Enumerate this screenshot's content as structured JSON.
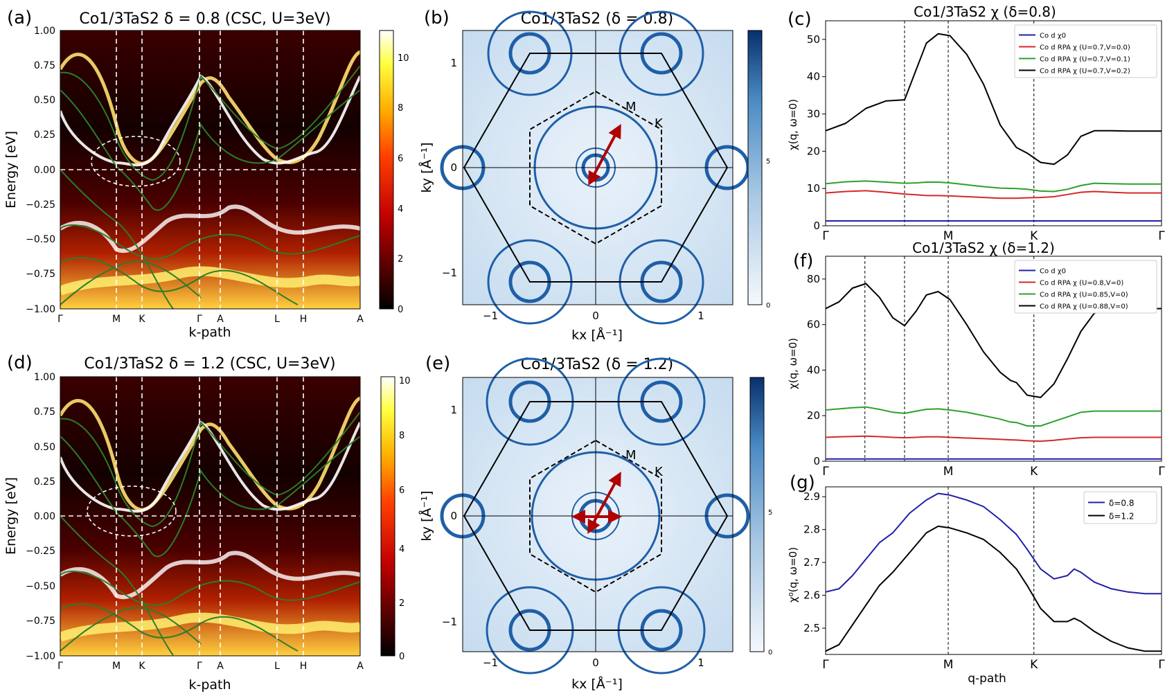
{
  "colors": {
    "green_band": "#2a7d2a",
    "blue_line": "#1f1fa8",
    "red_line": "#d62728",
    "green_line": "#2ca02c",
    "black_line": "#000000",
    "arrow": "#b00000",
    "fermi_blue": "#1f5fa8"
  },
  "panels": {
    "a": {
      "label": "(a)",
      "title": "Co1/3TaS2 δ = 0.8 (CSC, U=3eV)",
      "ylabel": "Energy [eV]",
      "xlabel": "k-path",
      "colorbar_ticks": [
        "0",
        "2",
        "4",
        "6",
        "8",
        "10"
      ]
    },
    "d": {
      "label": "(d)",
      "title": "Co1/3TaS2 δ = 1.2 (CSC, U=3eV)",
      "ylabel": "Energy [eV]",
      "xlabel": "k-path",
      "colorbar_ticks": [
        "0",
        "2",
        "4",
        "6",
        "8",
        "10"
      ]
    },
    "b": {
      "label": "(b)",
      "title": "Co1/3TaS2 (δ = 0.8)",
      "xlabel": "kx [Å⁻¹]",
      "ylabel": "ky [Å⁻¹]",
      "point_m": "M",
      "point_k": "K",
      "colorbar_ticks": [
        "0",
        "5"
      ]
    },
    "e": {
      "label": "(e)",
      "title": "Co1/3TaS2 (δ = 1.2)",
      "xlabel": "kx [Å⁻¹]",
      "ylabel": "ky [Å⁻¹]",
      "point_m": "M",
      "point_k": "K",
      "colorbar_ticks": [
        "0",
        "5"
      ]
    },
    "c": {
      "label": "(c)",
      "title": "Co1/3TaS2 χ (δ=0.8)",
      "ylabel": "χ(q, ω=0)"
    },
    "f": {
      "label": "(f)",
      "title": "Co1/3TaS2 χ (δ=1.2)",
      "ylabel": "χ(q, ω=0)"
    },
    "g": {
      "label": "(g)",
      "ylabel": "χ⁰(q, ω=0)",
      "xlabel": "q-path"
    }
  },
  "band_axes": {
    "yticks": [
      "1.00",
      "0.75",
      "0.50",
      "0.25",
      "0.00",
      "−0.25",
      "−0.50",
      "−0.75",
      "−1.00"
    ],
    "kticks": [
      "Γ",
      "M",
      "K",
      "Γ",
      "A",
      "L",
      "H",
      "A"
    ]
  },
  "fs_axes": {
    "xticks": [
      "−1",
      "0",
      "1"
    ],
    "yticks": [
      "1",
      "0",
      "−1"
    ]
  },
  "chart_data": [
    {
      "id": "c",
      "type": "line",
      "title": "Co1/3TaS2 χ (δ=0.8)",
      "ylabel": "χ(q, ω=0)",
      "xticks": [
        "Γ",
        "M",
        "K",
        "Γ"
      ],
      "ylim": [
        0,
        55
      ],
      "yticks": [
        0,
        10,
        20,
        30,
        40,
        50
      ],
      "x": [
        0,
        0.06,
        0.12,
        0.18,
        0.235,
        0.27,
        0.3,
        0.335,
        0.37,
        0.42,
        0.47,
        0.52,
        0.568,
        0.6,
        0.64,
        0.68,
        0.72,
        0.76,
        0.8,
        0.85,
        0.9,
        0.95,
        1.0
      ],
      "series": [
        {
          "name": "Co d χ0",
          "color": "#1f1fa8",
          "values": [
            1.3,
            1.3,
            1.3,
            1.3,
            1.3,
            1.3,
            1.3,
            1.3,
            1.3,
            1.3,
            1.3,
            1.3,
            1.3,
            1.3,
            1.3,
            1.3,
            1.3,
            1.3,
            1.3,
            1.3,
            1.3,
            1.3,
            1.3
          ]
        },
        {
          "name": "Co d RPA χ (U=0.7,V=0.0)",
          "color": "#d62728",
          "values": [
            8.8,
            9.2,
            9.4,
            9.0,
            8.5,
            8.3,
            8.1,
            8.1,
            8.0,
            7.8,
            7.6,
            7.4,
            7.4,
            7.5,
            7.6,
            7.8,
            8.4,
            9.0,
            9.2,
            9.0,
            8.8,
            8.8,
            8.8
          ]
        },
        {
          "name": "Co d RPA χ (U=0.7,V=0.1)",
          "color": "#2ca02c",
          "values": [
            11.3,
            11.8,
            12.0,
            11.7,
            11.4,
            11.5,
            11.7,
            11.7,
            11.5,
            11.0,
            10.5,
            10.1,
            10.0,
            9.8,
            9.3,
            9.2,
            9.8,
            10.8,
            11.4,
            11.3,
            11.2,
            11.2,
            11.2
          ]
        },
        {
          "name": "Co d RPA χ (U=0.7,V=0.2)",
          "color": "#000000",
          "values": [
            25.5,
            27.5,
            31.5,
            33.5,
            33.8,
            42.0,
            49.0,
            51.5,
            51.0,
            46.0,
            38.0,
            27.0,
            21.0,
            19.5,
            17.0,
            16.5,
            19.0,
            24.0,
            25.5,
            25.5,
            25.4,
            25.4,
            25.4
          ]
        }
      ]
    },
    {
      "id": "f",
      "type": "line",
      "title": "Co1/3TaS2 χ (δ=1.2)",
      "ylabel": "χ(q, ω=0)",
      "xticks": [
        "Γ",
        "M",
        "K",
        "Γ"
      ],
      "ylim": [
        0,
        90
      ],
      "yticks": [
        0,
        20,
        40,
        60,
        80
      ],
      "x": [
        0,
        0.04,
        0.08,
        0.12,
        0.16,
        0.2,
        0.235,
        0.27,
        0.3,
        0.335,
        0.37,
        0.42,
        0.47,
        0.52,
        0.55,
        0.568,
        0.6,
        0.64,
        0.68,
        0.72,
        0.76,
        0.8,
        0.85,
        0.9,
        0.95,
        1.0
      ],
      "series": [
        {
          "name": "Co d χ0",
          "color": "#1f1fa8",
          "values": [
            1.0,
            1.0,
            1.0,
            1.0,
            1.0,
            1.0,
            1.0,
            1.0,
            1.0,
            1.0,
            1.0,
            1.0,
            1.0,
            1.0,
            1.0,
            1.0,
            1.0,
            1.0,
            1.0,
            1.0,
            1.0,
            1.0,
            1.0,
            1.0,
            1.0,
            1.0
          ]
        },
        {
          "name": "Co d RPA χ (U=0.8,V=0)",
          "color": "#d62728",
          "values": [
            10.5,
            10.7,
            10.9,
            11.0,
            10.8,
            10.5,
            10.3,
            10.5,
            10.7,
            10.7,
            10.5,
            10.2,
            9.9,
            9.6,
            9.4,
            9.3,
            9.0,
            8.8,
            9.2,
            9.8,
            10.3,
            10.5,
            10.5,
            10.5,
            10.5,
            10.5
          ]
        },
        {
          "name": "Co d RPA χ (U=0.85,V=0)",
          "color": "#2ca02c",
          "values": [
            22.5,
            23.0,
            23.5,
            23.8,
            22.8,
            21.5,
            21.0,
            22.0,
            22.8,
            23.0,
            22.5,
            21.5,
            20.0,
            18.5,
            17.2,
            17.0,
            15.5,
            15.5,
            17.5,
            19.5,
            21.5,
            22.0,
            22.0,
            22.0,
            22.0,
            22.0
          ]
        },
        {
          "name": "Co d RPA χ (U=0.88,V=0)",
          "color": "#000000",
          "values": [
            67.0,
            70.0,
            76.0,
            78.0,
            72.0,
            63.0,
            59.5,
            66.0,
            73.0,
            74.5,
            71.0,
            60.0,
            48.0,
            39.0,
            35.5,
            34.5,
            29.0,
            28.0,
            34.0,
            45.0,
            57.0,
            65.0,
            66.5,
            67.0,
            67.0,
            67.0
          ]
        }
      ]
    },
    {
      "id": "g",
      "type": "line",
      "ylabel": "χ⁰(q, ω=0)",
      "xlabel": "q-path",
      "xticks": [
        "Γ",
        "M",
        "K",
        "Γ"
      ],
      "ylim": [
        2.42,
        2.93
      ],
      "yticks": [
        2.5,
        2.6,
        2.7,
        2.8,
        2.9
      ],
      "x": [
        0,
        0.04,
        0.08,
        0.12,
        0.16,
        0.2,
        0.25,
        0.3,
        0.335,
        0.37,
        0.42,
        0.47,
        0.52,
        0.568,
        0.6,
        0.64,
        0.68,
        0.72,
        0.74,
        0.76,
        0.8,
        0.85,
        0.9,
        0.95,
        1.0
      ],
      "series": [
        {
          "name": "δ=0.8",
          "color": "#1f1fa8",
          "values": [
            2.61,
            2.62,
            2.66,
            2.71,
            2.76,
            2.79,
            2.85,
            2.89,
            2.91,
            2.905,
            2.89,
            2.87,
            2.83,
            2.785,
            2.74,
            2.68,
            2.65,
            2.66,
            2.68,
            2.67,
            2.64,
            2.62,
            2.61,
            2.605,
            2.605
          ]
        },
        {
          "name": "δ=1.2",
          "color": "#000000",
          "values": [
            2.43,
            2.45,
            2.51,
            2.57,
            2.63,
            2.67,
            2.73,
            2.79,
            2.81,
            2.805,
            2.79,
            2.77,
            2.73,
            2.68,
            2.63,
            2.56,
            2.52,
            2.52,
            2.53,
            2.52,
            2.49,
            2.46,
            2.44,
            2.43,
            2.43
          ]
        }
      ]
    }
  ]
}
